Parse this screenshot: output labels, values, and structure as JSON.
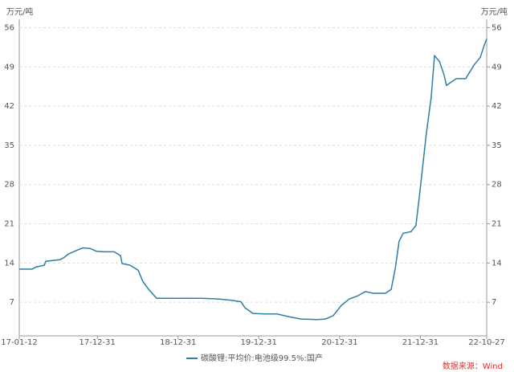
{
  "chart_data": {
    "type": "line",
    "y_label": "万元/吨",
    "y2_label": "万元/吨",
    "source": "数据来源：Wind",
    "source_color": "#e03030",
    "x": [
      "17-01-12",
      "17-03-11",
      "17-03-29",
      "17-05-05",
      "17-05-12",
      "17-07-16",
      "17-08-03",
      "17-08-22",
      "17-09-20",
      "17-10-26",
      "17-11-28",
      "17-12-27",
      "18-02-01",
      "18-03-17",
      "18-04-15",
      "18-04-22",
      "18-05-28",
      "18-07-04",
      "18-07-25",
      "18-08-20",
      "18-09-25",
      "18-12-25",
      "19-04-13",
      "19-06-24",
      "19-08-18",
      "19-10-11",
      "19-10-30",
      "19-12-05",
      "20-01-28",
      "20-03-23",
      "20-05-16",
      "20-07-10",
      "20-09-20",
      "20-10-27",
      "20-12-02",
      "21-01-07",
      "21-02-13",
      "21-03-21",
      "21-04-26",
      "21-06-02",
      "21-07-26",
      "21-08-21",
      "21-09-08",
      "21-09-26",
      "21-10-14",
      "21-11-19",
      "21-12-11",
      "21-12-26",
      "22-01-13",
      "22-01-27",
      "22-02-18",
      "22-03-05",
      "22-03-27",
      "22-04-17",
      "22-04-28",
      "22-05-24",
      "22-06-11",
      "22-07-24",
      "22-08-30",
      "22-09-28",
      "22-10-16",
      "22-10-27"
    ],
    "series": [
      {
        "name": "碳酸锂:平均价:电池级99.5%:国产",
        "color": "#2e7fa3",
        "values": [
          12.9,
          12.9,
          13.3,
          13.6,
          14.3,
          14.6,
          15,
          15.6,
          16.1,
          16.7,
          16.6,
          16.1,
          16,
          16,
          15.3,
          13.9,
          13.6,
          12.7,
          10.7,
          9.3,
          7.7,
          7.7,
          7.7,
          7.6,
          7.4,
          7.1,
          6,
          5,
          4.9,
          4.9,
          4.4,
          4,
          3.9,
          4,
          4.6,
          6.4,
          7.6,
          8.1,
          8.9,
          8.6,
          8.6,
          9.3,
          12.9,
          17.9,
          19.3,
          19.6,
          20.7,
          25.7,
          32.1,
          37.1,
          43.6,
          51,
          50,
          47.6,
          45.7,
          46.4,
          46.9,
          46.9,
          49.3,
          50.7,
          52.9,
          54
        ]
      }
    ],
    "xlim": [
      "17-01-12",
      "22-10-27"
    ],
    "xticks": [
      "17-01-12",
      "17-12-31",
      "18-12-31",
      "19-12-31",
      "20-12-31",
      "21-12-31",
      "22-10-27"
    ],
    "ylim": [
      1,
      57.5
    ],
    "yticks": [
      7,
      14,
      21,
      28,
      35,
      42,
      49,
      56
    ],
    "y2lim": [
      1,
      57.5
    ],
    "y2ticks": [
      7,
      14,
      21,
      28,
      35,
      42,
      49,
      56
    ],
    "grid": true
  }
}
